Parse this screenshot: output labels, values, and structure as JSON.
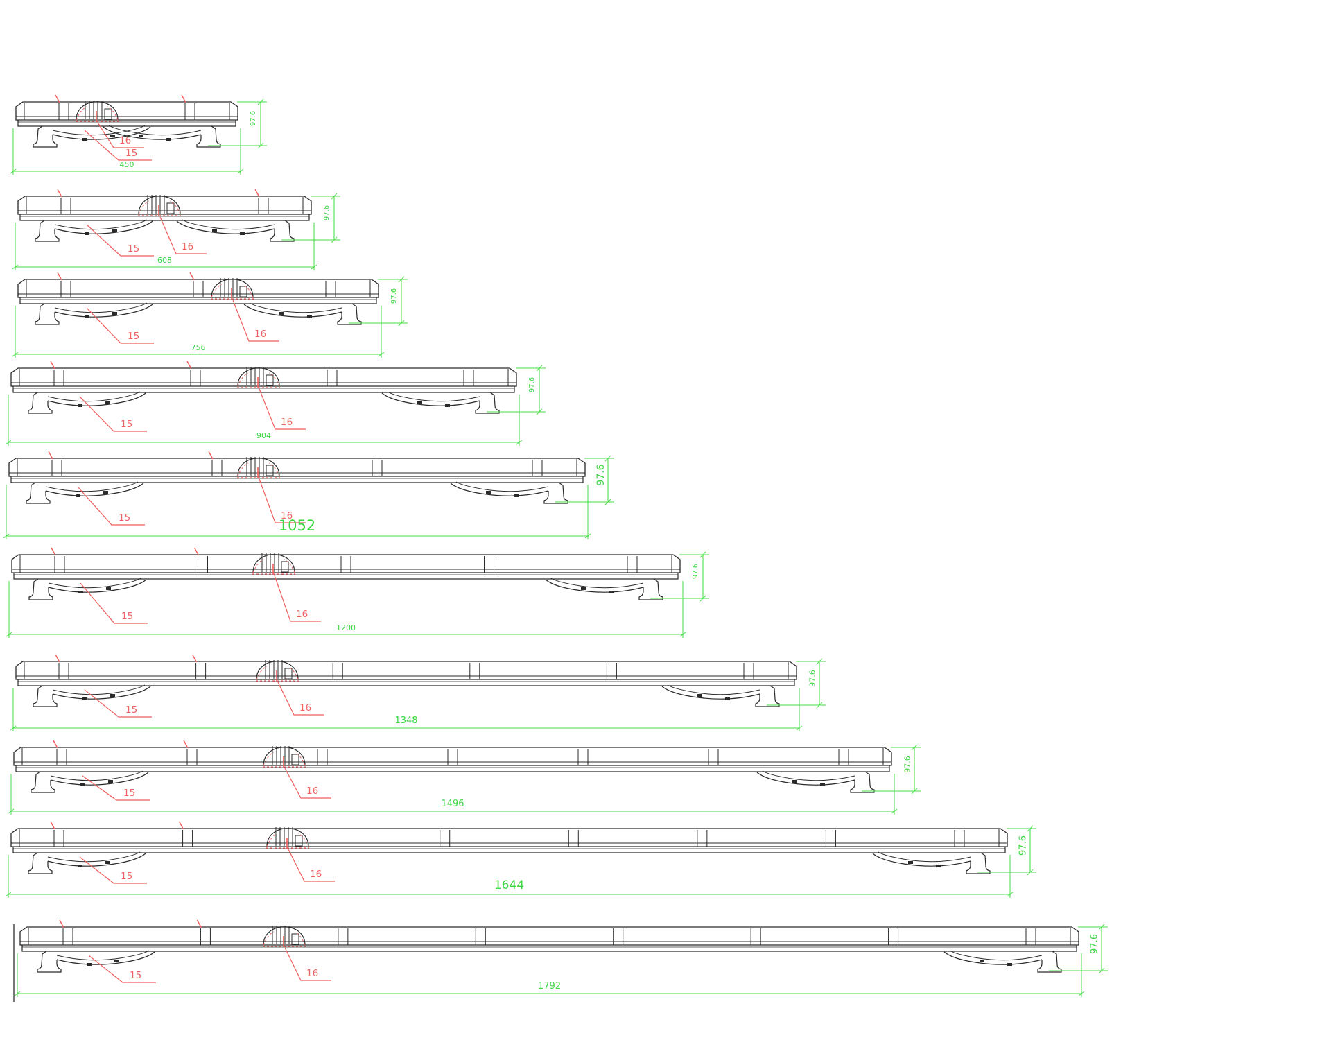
{
  "drawing": {
    "labels": {
      "bracket_part": "15",
      "center_module_part": "16",
      "height_dim": "97.6"
    },
    "colors": {
      "dimension_green": "#4ade4a",
      "dimension_text_green": "#3cd643",
      "leader_red": "#ef5d5d",
      "leader_text_red": "#ee6363",
      "linework_black": "#2a2a2a",
      "background": "#ffffff"
    },
    "bars": [
      {
        "length": "450"
      },
      {
        "length": "608"
      },
      {
        "length": "756"
      },
      {
        "length": "904"
      },
      {
        "length": "1052"
      },
      {
        "length": "1200"
      },
      {
        "length": "1348"
      },
      {
        "length": "1496"
      },
      {
        "length": "1644"
      },
      {
        "length": "1792"
      }
    ]
  }
}
